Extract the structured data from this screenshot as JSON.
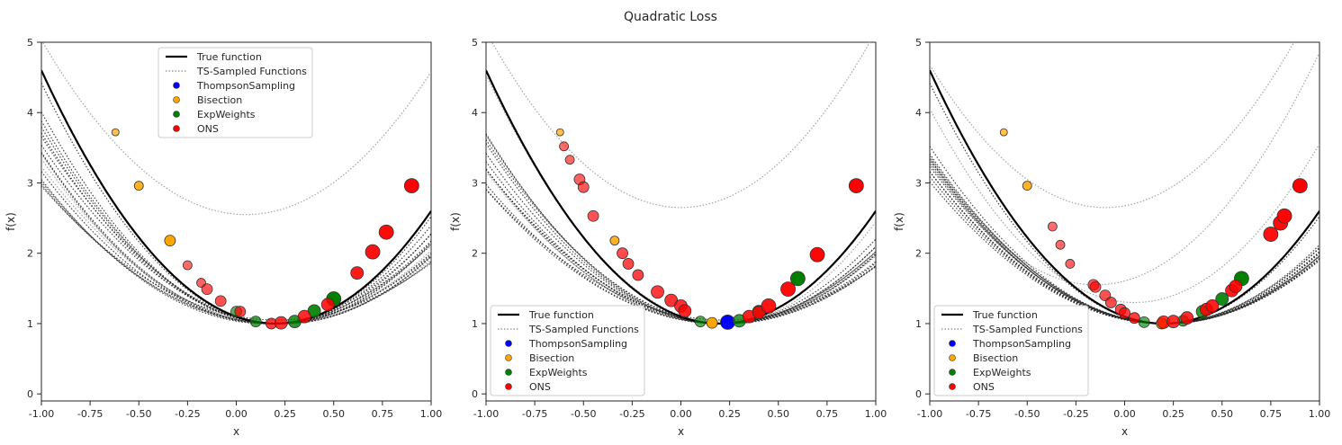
{
  "figure": {
    "suptitle": "Quadratic Loss"
  },
  "chart_data": [
    {
      "type": "scatter",
      "panel": "left",
      "xlabel": "x",
      "ylabel": "f(x)",
      "xlim": [
        -1.0,
        1.0
      ],
      "ylim": [
        -0.1,
        5.0
      ],
      "xticks": [
        "-1.00",
        "-0.75",
        "-0.50",
        "-0.25",
        "0.00",
        "0.25",
        "0.50",
        "0.75",
        "1.00"
      ],
      "yticks": [
        "0",
        "1",
        "2",
        "3",
        "4",
        "5"
      ],
      "legend_position": "top-center",
      "legend": [
        "True function",
        "TS-Sampled Functions",
        "ThompsonSampling",
        "Bisection",
        "ExpWeights",
        "ONS"
      ],
      "true_function": {
        "a": 1.0,
        "c": 0.2,
        "b": 1.0
      },
      "sampled_functions": [
        {
          "a": 0.9,
          "c": 0.05,
          "b": 2.55
        },
        {
          "a": 0.6,
          "c": 0.22,
          "b": 1.0
        },
        {
          "a": 0.65,
          "c": 0.2,
          "b": 1.0
        },
        {
          "a": 0.7,
          "c": 0.18,
          "b": 1.0
        },
        {
          "a": 0.75,
          "c": 0.22,
          "b": 1.0
        },
        {
          "a": 0.55,
          "c": 0.2,
          "b": 1.0
        },
        {
          "a": 0.8,
          "c": 0.2,
          "b": 1.0
        },
        {
          "a": 0.62,
          "c": 0.15,
          "b": 1.0
        },
        {
          "a": 0.68,
          "c": 0.25,
          "b": 1.0
        },
        {
          "a": 0.58,
          "c": 0.18,
          "b": 1.0
        },
        {
          "a": 0.72,
          "c": 0.16,
          "b": 1.0
        },
        {
          "a": 0.66,
          "c": 0.24,
          "b": 1.0
        },
        {
          "a": 0.52,
          "c": 0.21,
          "b": 1.05
        },
        {
          "a": 0.85,
          "c": 0.19,
          "b": 1.0
        },
        {
          "a": 0.95,
          "c": 0.2,
          "b": 1.0
        },
        {
          "a": 0.61,
          "c": 0.19,
          "b": 1.0
        },
        {
          "a": 0.74,
          "c": 0.21,
          "b": 1.0
        }
      ],
      "series": [
        {
          "name": "Bisection",
          "color": "#ffa500",
          "points": [
            [
              -0.62,
              3.72
            ],
            [
              -0.5,
              2.96
            ],
            [
              -0.34,
              2.18
            ]
          ]
        },
        {
          "name": "ExpWeights",
          "color": "#008000",
          "points": [
            [
              0.0,
              1.17
            ],
            [
              0.1,
              1.03
            ],
            [
              0.3,
              1.03
            ],
            [
              0.4,
              1.18
            ],
            [
              0.5,
              1.35
            ]
          ]
        },
        {
          "name": "ONS",
          "color": "#ff0000",
          "points": [
            [
              -0.25,
              1.83
            ],
            [
              -0.18,
              1.58
            ],
            [
              -0.15,
              1.49
            ],
            [
              -0.08,
              1.32
            ],
            [
              0.02,
              1.17
            ],
            [
              0.18,
              1.0
            ],
            [
              0.23,
              1.01
            ],
            [
              0.35,
              1.1
            ],
            [
              0.47,
              1.27
            ],
            [
              0.62,
              1.72
            ],
            [
              0.7,
              2.02
            ],
            [
              0.77,
              2.3
            ],
            [
              0.9,
              2.96
            ]
          ]
        }
      ]
    },
    {
      "type": "scatter",
      "panel": "middle",
      "xlabel": "x",
      "ylabel": "f(x)",
      "xlim": [
        -1.0,
        1.0
      ],
      "ylim": [
        -0.1,
        5.0
      ],
      "xticks": [
        "-1.00",
        "-0.75",
        "-0.50",
        "-0.25",
        "0.00",
        "0.25",
        "0.50",
        "0.75",
        "1.00"
      ],
      "yticks": [
        "0",
        "1",
        "2",
        "3",
        "4",
        "5"
      ],
      "legend_position": "lower-left",
      "legend": [
        "True function",
        "TS-Sampled Functions",
        "ThompsonSampling",
        "Bisection",
        "ExpWeights",
        "ONS"
      ],
      "true_function": {
        "a": 1.0,
        "c": 0.2,
        "b": 1.0
      },
      "sampled_functions": [
        {
          "a": 1.0,
          "c": 0.0,
          "b": 2.65
        },
        {
          "a": 0.95,
          "c": 0.22,
          "b": 1.0
        },
        {
          "a": 0.6,
          "c": 0.2,
          "b": 1.0
        },
        {
          "a": 0.65,
          "c": 0.22,
          "b": 1.0
        },
        {
          "a": 0.7,
          "c": 0.21,
          "b": 1.0
        },
        {
          "a": 0.55,
          "c": 0.2,
          "b": 1.0
        },
        {
          "a": 0.58,
          "c": 0.23,
          "b": 1.0
        },
        {
          "a": 0.62,
          "c": 0.19,
          "b": 1.0
        },
        {
          "a": 0.68,
          "c": 0.24,
          "b": 1.0
        },
        {
          "a": 0.52,
          "c": 0.21,
          "b": 1.0
        },
        {
          "a": 0.75,
          "c": 0.2,
          "b": 1.0
        },
        {
          "a": 0.5,
          "c": 0.22,
          "b": 1.05
        },
        {
          "a": 0.64,
          "c": 0.2,
          "b": 1.0
        },
        {
          "a": 0.57,
          "c": 0.24,
          "b": 1.0
        },
        {
          "a": 0.72,
          "c": 0.22,
          "b": 1.0
        }
      ],
      "series": [
        {
          "name": "ThompsonSampling",
          "color": "#0000ff",
          "points": [
            [
              0.24,
              1.02
            ]
          ]
        },
        {
          "name": "Bisection",
          "color": "#ffa500",
          "points": [
            [
              -0.62,
              3.72
            ],
            [
              -0.34,
              2.18
            ],
            [
              0.16,
              1.01
            ]
          ]
        },
        {
          "name": "ExpWeights",
          "color": "#008000",
          "points": [
            [
              0.1,
              1.03
            ],
            [
              0.3,
              1.04
            ],
            [
              0.4,
              1.17
            ],
            [
              0.6,
              1.64
            ]
          ]
        },
        {
          "name": "ONS",
          "color": "#ff0000",
          "points": [
            [
              -0.6,
              3.52
            ],
            [
              -0.57,
              3.33
            ],
            [
              -0.52,
              3.05
            ],
            [
              -0.5,
              2.94
            ],
            [
              -0.45,
              2.53
            ],
            [
              -0.3,
              2.0
            ],
            [
              -0.27,
              1.85
            ],
            [
              -0.22,
              1.69
            ],
            [
              -0.12,
              1.45
            ],
            [
              -0.05,
              1.33
            ],
            [
              0.0,
              1.25
            ],
            [
              0.02,
              1.18
            ],
            [
              0.35,
              1.1
            ],
            [
              0.4,
              1.16
            ],
            [
              0.45,
              1.25
            ],
            [
              0.55,
              1.49
            ],
            [
              0.7,
              1.98
            ],
            [
              0.9,
              2.96
            ]
          ]
        }
      ]
    },
    {
      "type": "scatter",
      "panel": "right",
      "xlabel": "x",
      "ylabel": "f(x)",
      "xlim": [
        -1.0,
        1.0
      ],
      "ylim": [
        -0.1,
        5.0
      ],
      "xticks": [
        "-1.00",
        "-0.75",
        "-0.50",
        "-0.25",
        "0.00",
        "0.25",
        "0.50",
        "0.75",
        "1.00"
      ],
      "yticks": [
        "0",
        "1",
        "2",
        "3",
        "4",
        "5"
      ],
      "legend_position": "lower-left",
      "legend": [
        "True function",
        "TS-Sampled Functions",
        "ThompsonSampling",
        "Bisection",
        "ExpWeights",
        "ONS"
      ],
      "true_function": {
        "a": 1.0,
        "c": 0.2,
        "b": 1.0
      },
      "sampled_functions": [
        {
          "a": 1.0,
          "c": -0.1,
          "b": 2.65
        },
        {
          "a": 1.0,
          "c": -0.15,
          "b": 1.55
        },
        {
          "a": 1.0,
          "c": 0.05,
          "b": 1.3
        },
        {
          "a": 0.95,
          "c": 0.2,
          "b": 1.0
        },
        {
          "a": 0.6,
          "c": 0.2,
          "b": 1.0
        },
        {
          "a": 0.62,
          "c": 0.21,
          "b": 1.0
        },
        {
          "a": 0.64,
          "c": 0.2,
          "b": 1.0
        },
        {
          "a": 0.66,
          "c": 0.19,
          "b": 1.0
        },
        {
          "a": 0.6,
          "c": 0.22,
          "b": 1.0
        },
        {
          "a": 0.58,
          "c": 0.2,
          "b": 1.0
        },
        {
          "a": 0.65,
          "c": 0.21,
          "b": 1.0
        },
        {
          "a": 0.63,
          "c": 0.22,
          "b": 1.0
        },
        {
          "a": 0.61,
          "c": 0.19,
          "b": 1.0
        },
        {
          "a": 0.67,
          "c": 0.2,
          "b": 1.0
        },
        {
          "a": 0.59,
          "c": 0.21,
          "b": 1.0
        },
        {
          "a": 0.56,
          "c": 0.2,
          "b": 1.0
        },
        {
          "a": 0.7,
          "c": 0.2,
          "b": 1.0
        }
      ],
      "series": [
        {
          "name": "Bisection",
          "color": "#ffa500",
          "points": [
            [
              -0.62,
              3.72
            ],
            [
              -0.5,
              2.96
            ],
            [
              0.19,
              1.0
            ]
          ]
        },
        {
          "name": "ExpWeights",
          "color": "#008000",
          "points": [
            [
              0.1,
              1.02
            ],
            [
              0.3,
              1.04
            ],
            [
              0.4,
              1.17
            ],
            [
              0.5,
              1.35
            ],
            [
              0.6,
              1.64
            ]
          ]
        },
        {
          "name": "ONS",
          "color": "#ff0000",
          "points": [
            [
              -0.37,
              2.38
            ],
            [
              -0.33,
              2.12
            ],
            [
              -0.28,
              1.85
            ],
            [
              -0.16,
              1.55
            ],
            [
              -0.15,
              1.52
            ],
            [
              -0.1,
              1.4
            ],
            [
              -0.07,
              1.3
            ],
            [
              -0.02,
              1.2
            ],
            [
              0.0,
              1.15
            ],
            [
              0.05,
              1.08
            ],
            [
              0.2,
              1.02
            ],
            [
              0.25,
              1.03
            ],
            [
              0.32,
              1.08
            ],
            [
              0.42,
              1.2
            ],
            [
              0.45,
              1.25
            ],
            [
              0.55,
              1.47
            ],
            [
              0.57,
              1.53
            ],
            [
              0.75,
              2.27
            ],
            [
              0.8,
              2.43
            ],
            [
              0.82,
              2.53
            ],
            [
              0.9,
              2.96
            ]
          ]
        }
      ]
    }
  ]
}
